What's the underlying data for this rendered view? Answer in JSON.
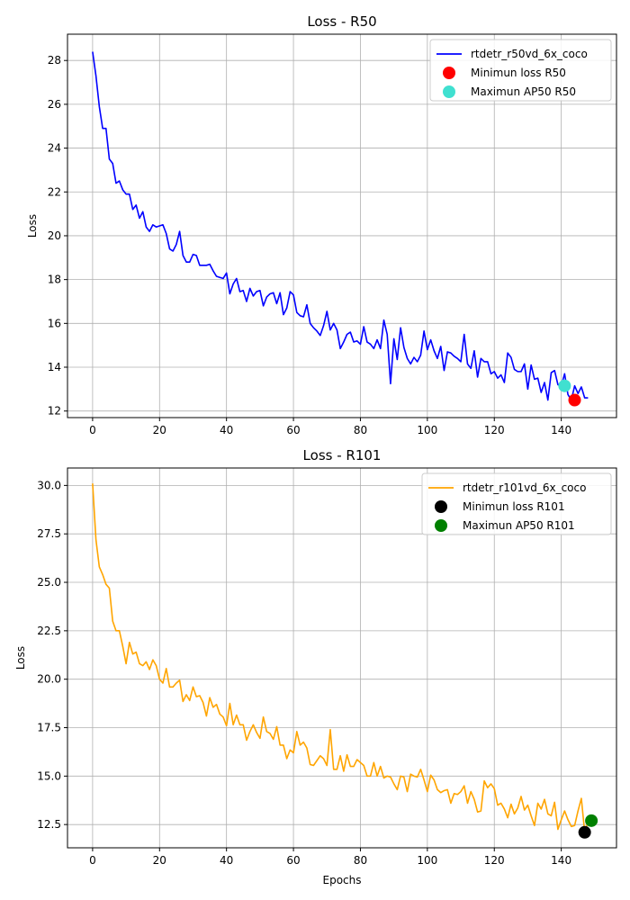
{
  "chart_data": [
    {
      "type": "line",
      "title": "Loss - R50",
      "xlabel": "",
      "ylabel": "Loss",
      "xlim": [
        -7.5,
        156.5
      ],
      "ylim": [
        11.7,
        29.2
      ],
      "xticks": [
        0,
        20,
        40,
        60,
        80,
        100,
        120,
        140
      ],
      "yticks": [
        12,
        14,
        16,
        18,
        20,
        22,
        24,
        26,
        28
      ],
      "grid": true,
      "legend_position": "top-right",
      "series": [
        {
          "name": "rtdetr_r50vd_6x_coco",
          "color": "#0000ff",
          "y": [
            28.4,
            27.3,
            25.9,
            24.9,
            24.9,
            23.5,
            23.3,
            22.4,
            22.5,
            22.1,
            21.9,
            21.9,
            21.2,
            21.4,
            20.8,
            21.1,
            20.4,
            20.2,
            20.5,
            20.4,
            20.45,
            20.5,
            20.1,
            19.4,
            19.3,
            19.6,
            20.2,
            19.1,
            18.8,
            18.8,
            19.15,
            19.1,
            18.65,
            18.65,
            18.65,
            18.7,
            18.4,
            18.15,
            18.1,
            18.05,
            18.3,
            17.35,
            17.8,
            18.05,
            17.45,
            17.5,
            17.0,
            17.6,
            17.25,
            17.45,
            17.5,
            16.8,
            17.2,
            17.35,
            17.4,
            16.9,
            17.4,
            16.4,
            16.7,
            17.45,
            17.3,
            16.5,
            16.35,
            16.3,
            16.85,
            16.0,
            15.8,
            15.65,
            15.45,
            15.9,
            16.55,
            15.7,
            16.0,
            15.7,
            14.85,
            15.15,
            15.5,
            15.6,
            15.15,
            15.2,
            15.05,
            15.85,
            15.15,
            15.05,
            14.85,
            15.25,
            14.85,
            16.15,
            15.5,
            13.25,
            15.3,
            14.35,
            15.8,
            14.9,
            14.4,
            14.15,
            14.45,
            14.25,
            14.55,
            15.65,
            14.8,
            15.25,
            14.75,
            14.4,
            14.95,
            13.85,
            14.7,
            14.65,
            14.5,
            14.4,
            14.25,
            15.5,
            14.15,
            13.95,
            14.75,
            13.55,
            14.4,
            14.25,
            14.25,
            13.7,
            13.8,
            13.5,
            13.65,
            13.3,
            14.65,
            14.45,
            13.9,
            13.8,
            13.8,
            14.15,
            13.0,
            14.1,
            13.45,
            13.5,
            12.85,
            13.3,
            12.5,
            13.75,
            13.85,
            13.2,
            13.15,
            13.7,
            12.75,
            12.5,
            13.15,
            12.8,
            13.1,
            12.6,
            12.6
          ]
        },
        {
          "name": "Minimun loss R50",
          "color": "#ff0000",
          "kind": "marker",
          "x": [
            144
          ],
          "y": [
            12.5
          ]
        },
        {
          "name": "Maximun AP50 R50",
          "color": "#40e0d0",
          "kind": "marker",
          "x": [
            141
          ],
          "y": [
            13.15
          ]
        }
      ]
    },
    {
      "type": "line",
      "title": "Loss - R101",
      "xlabel": "Epochs",
      "ylabel": "Loss",
      "xlim": [
        -7.5,
        156.5
      ],
      "ylim": [
        11.3,
        30.9
      ],
      "xticks": [
        0,
        20,
        40,
        60,
        80,
        100,
        120,
        140
      ],
      "yticks": [
        12.5,
        15.0,
        17.5,
        20.0,
        22.5,
        25.0,
        27.5,
        30.0
      ],
      "ytick_labels": [
        "12.5",
        "15.0",
        "17.5",
        "20.0",
        "22.5",
        "25.0",
        "27.5",
        "30.0"
      ],
      "grid": true,
      "legend_position": "top-right",
      "series": [
        {
          "name": "rtdetr_r101vd_6x_coco",
          "color": "#ffa500",
          "y": [
            30.1,
            27.2,
            25.8,
            25.4,
            24.9,
            24.7,
            23.0,
            22.5,
            22.5,
            21.7,
            20.8,
            21.9,
            21.3,
            21.4,
            20.8,
            20.7,
            20.9,
            20.5,
            21.0,
            20.7,
            20.0,
            19.8,
            20.55,
            19.6,
            19.6,
            19.8,
            19.95,
            18.85,
            19.2,
            18.9,
            19.6,
            19.1,
            19.15,
            18.8,
            18.1,
            19.05,
            18.55,
            18.7,
            18.2,
            18.05,
            17.6,
            18.75,
            17.65,
            18.15,
            17.65,
            17.65,
            16.85,
            17.3,
            17.65,
            17.25,
            16.95,
            18.05,
            17.3,
            17.2,
            16.9,
            17.55,
            16.6,
            16.6,
            15.9,
            16.35,
            16.2,
            17.3,
            16.6,
            16.75,
            16.45,
            15.6,
            15.55,
            15.8,
            16.05,
            15.9,
            15.55,
            17.4,
            15.35,
            15.35,
            16.05,
            15.25,
            16.1,
            15.5,
            15.5,
            15.85,
            15.7,
            15.55,
            15.0,
            15.0,
            15.7,
            15.0,
            15.5,
            14.9,
            15.0,
            14.95,
            14.6,
            14.3,
            15.0,
            14.95,
            14.2,
            15.1,
            15.0,
            14.95,
            15.35,
            14.8,
            14.2,
            15.05,
            14.8,
            14.3,
            14.15,
            14.25,
            14.3,
            13.6,
            14.1,
            14.05,
            14.2,
            14.5,
            13.6,
            14.2,
            13.8,
            13.15,
            13.2,
            14.75,
            14.4,
            14.6,
            14.35,
            13.5,
            13.6,
            13.3,
            12.85,
            13.55,
            13.05,
            13.35,
            13.95,
            13.25,
            13.5,
            12.95,
            12.45,
            13.6,
            13.3,
            13.8,
            13.05,
            12.95,
            13.65,
            12.25,
            12.75,
            13.2,
            12.75,
            12.4,
            12.45,
            13.2,
            13.85,
            12.1,
            12.65,
            12.7
          ]
        },
        {
          "name": "Minimun loss R101",
          "color": "#000000",
          "kind": "marker",
          "x": [
            147
          ],
          "y": [
            12.1
          ]
        },
        {
          "name": "Maximun AP50 R101",
          "color": "#008000",
          "kind": "marker",
          "x": [
            149
          ],
          "y": [
            12.7
          ]
        }
      ]
    }
  ]
}
